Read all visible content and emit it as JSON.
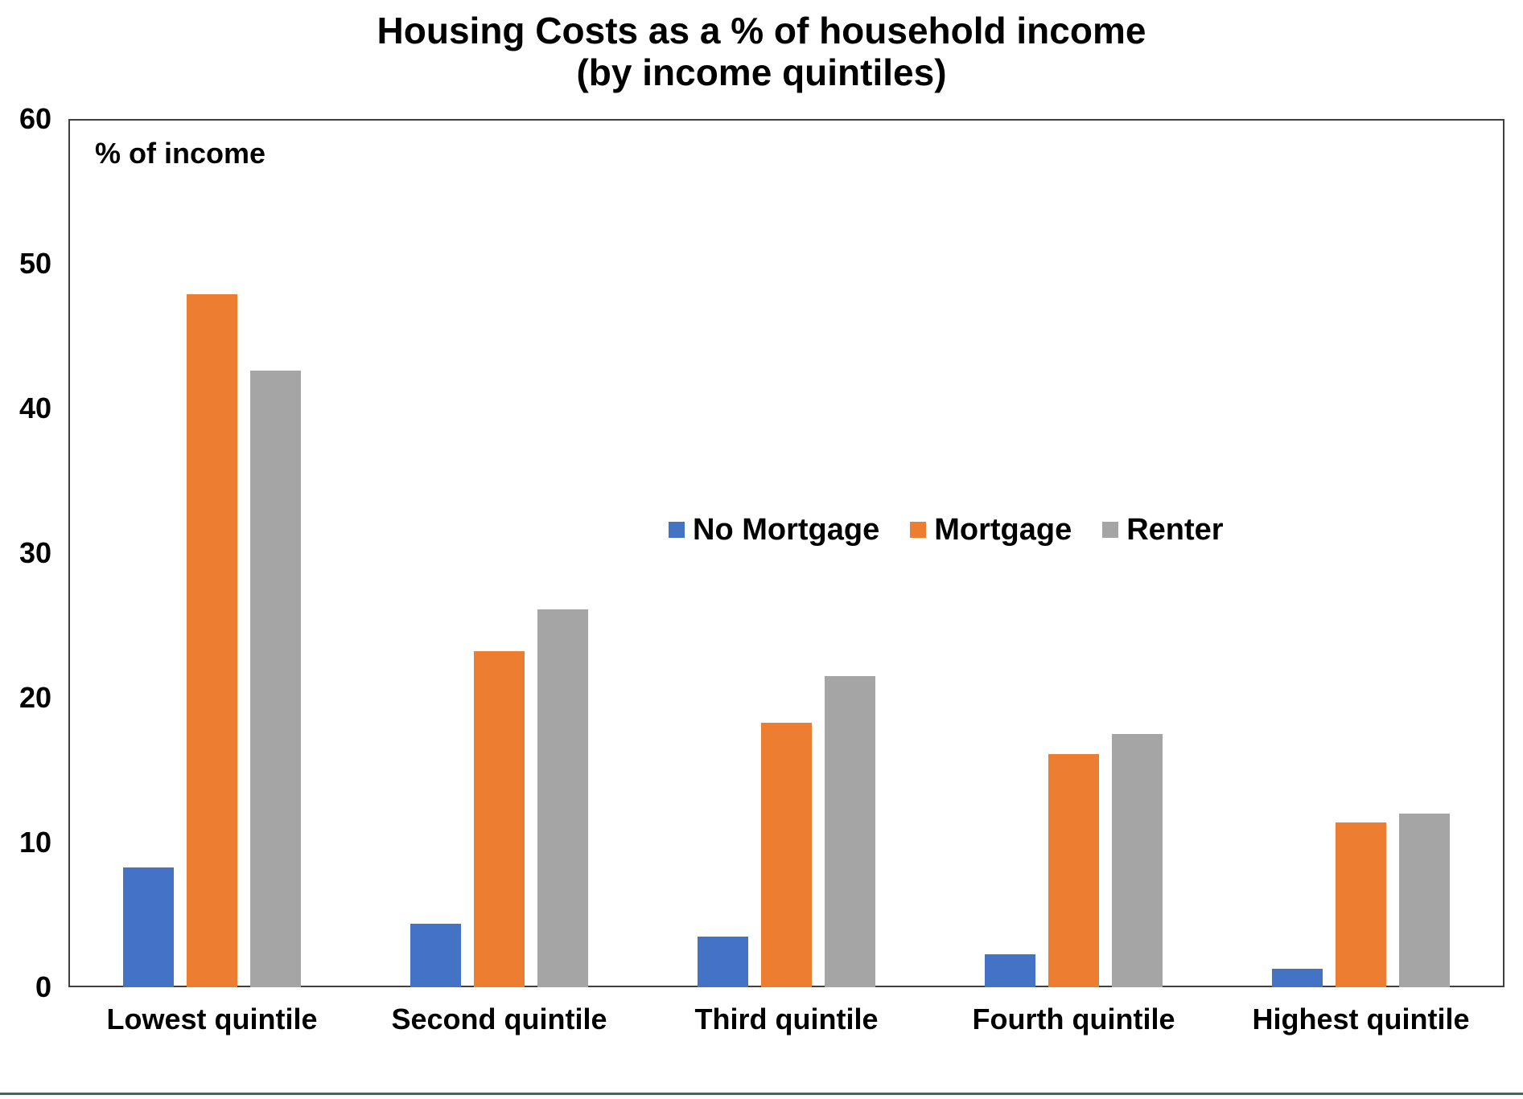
{
  "page": {
    "background": "#ffffff",
    "bottom_rule_color": "#3C6B4F",
    "axis_color": "#404040",
    "text_color": "#000000"
  },
  "chart_data": {
    "type": "bar",
    "title": "Housing Costs as a % of household income",
    "subtitle": "(by income quintiles)",
    "inner_axis_label": "% of income",
    "xlabel": "",
    "ylabel": "% of income",
    "ylim": [
      0,
      60
    ],
    "yticks": [
      0,
      10,
      20,
      30,
      40,
      50,
      60
    ],
    "grid": false,
    "plot_border": true,
    "legend_position": "inside-plot-center-right",
    "categories": [
      "Lowest quintile",
      "Second quintile",
      "Third quintile",
      "Fourth quintile",
      "Highest quintile"
    ],
    "series": [
      {
        "name": "No Mortgage",
        "color": "#4472C4",
        "values": [
          8.3,
          4.4,
          3.5,
          2.3,
          1.3
        ]
      },
      {
        "name": "Mortgage",
        "color": "#ED7D31",
        "values": [
          47.9,
          23.2,
          18.3,
          16.1,
          11.4
        ]
      },
      {
        "name": "Renter",
        "color": "#A5A5A5",
        "values": [
          42.6,
          26.1,
          21.5,
          17.5,
          12.0
        ]
      }
    ]
  }
}
